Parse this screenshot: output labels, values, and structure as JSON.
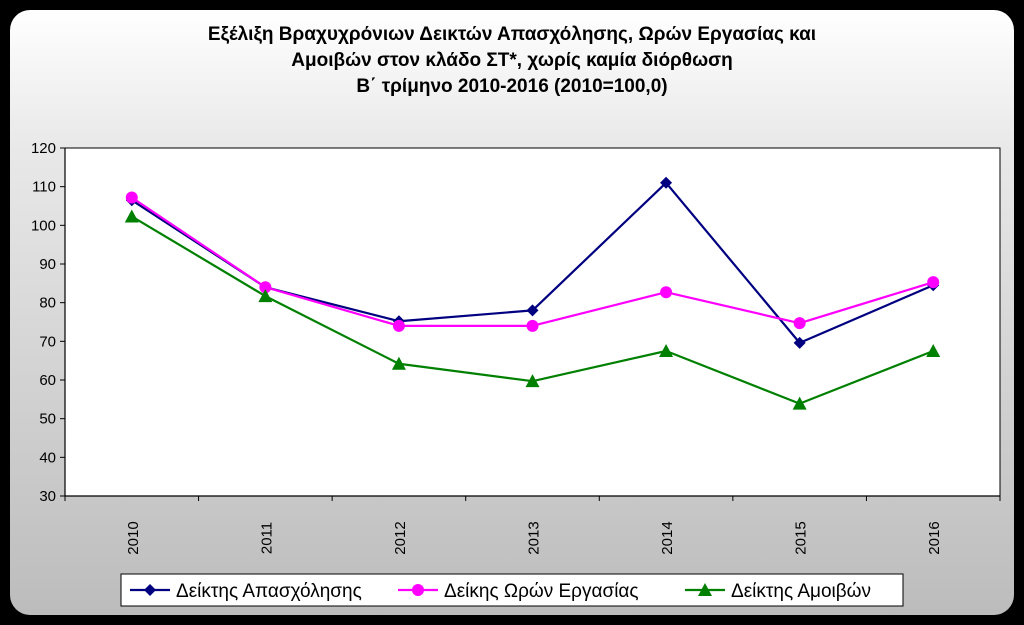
{
  "chart_data": {
    "type": "line",
    "title_lines": [
      "Εξέλιξη Βραχυχρόνιων Δεικτών Απασχόλησης, Ωρών Εργασίας και",
      "Αμοιβών στον κλάδο ΣΤ*, χωρίς καμία διόρθωση",
      "Β΄ τρίμηνο 2010-2016 (2010=100,0)"
    ],
    "categories": [
      "2010",
      "2011",
      "2012",
      "2013",
      "2014",
      "2015",
      "2016"
    ],
    "ylim": [
      30,
      120
    ],
    "yticks": [
      30,
      40,
      50,
      60,
      70,
      80,
      90,
      100,
      110,
      120
    ],
    "grid": false,
    "legend_position": "bottom",
    "series": [
      {
        "name": "Δείκτης Απασχόλησης",
        "values": [
          106.5,
          84.0,
          75.2,
          78.0,
          111.0,
          69.6,
          84.5
        ],
        "color": "#000080",
        "marker": "diamond"
      },
      {
        "name": "Δείκης Ωρών Εργασίας",
        "values": [
          107.2,
          84.0,
          74.0,
          74.0,
          82.7,
          74.7,
          85.3
        ],
        "color": "#ff00ff",
        "marker": "circle"
      },
      {
        "name": "Δείκτης Αμοιβών",
        "values": [
          102.3,
          81.7,
          64.2,
          59.7,
          67.5,
          53.9,
          67.5
        ],
        "color": "#008000",
        "marker": "triangle"
      }
    ]
  }
}
